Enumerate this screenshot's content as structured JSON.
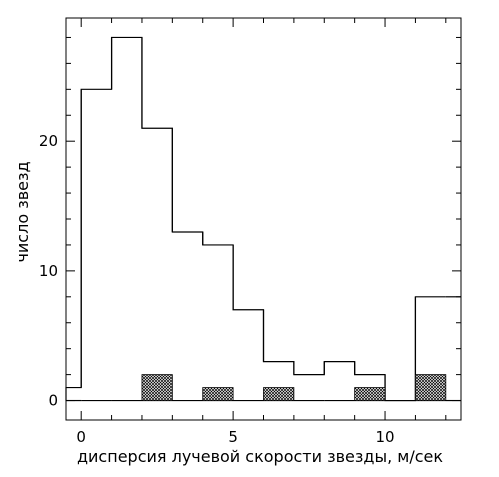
{
  "chart_data": {
    "type": "bar",
    "xlabel": "дисперсия лучевой скорости звезды, м/сек",
    "ylabel": "число звезд",
    "xlim": [
      -0.5,
      12.5
    ],
    "ylim": [
      -1.5,
      29.5
    ],
    "x_ticks": [
      0,
      5,
      10
    ],
    "x_tick_labels": [
      "0",
      "5",
      "10"
    ],
    "y_ticks": [
      0,
      10,
      20
    ],
    "y_tick_labels": [
      "0",
      "10",
      "20"
    ],
    "grid": false,
    "bin_width": 1,
    "series": [
      {
        "style": "outline",
        "bin_centers": [
          -0.5,
          0.5,
          1.5,
          2.5,
          3.5,
          4.5,
          5.5,
          6.5,
          7.5,
          8.5,
          9.5,
          10.5,
          11.5,
          12.5
        ],
        "values": [
          1,
          24,
          28,
          21,
          13,
          12,
          7,
          3,
          2,
          3,
          2,
          0,
          8,
          8
        ]
      },
      {
        "style": "hatched",
        "bin_centers": [
          2.5,
          4.5,
          6.5,
          9.5,
          11.5
        ],
        "values": [
          2,
          1,
          1,
          1,
          2
        ]
      }
    ]
  }
}
